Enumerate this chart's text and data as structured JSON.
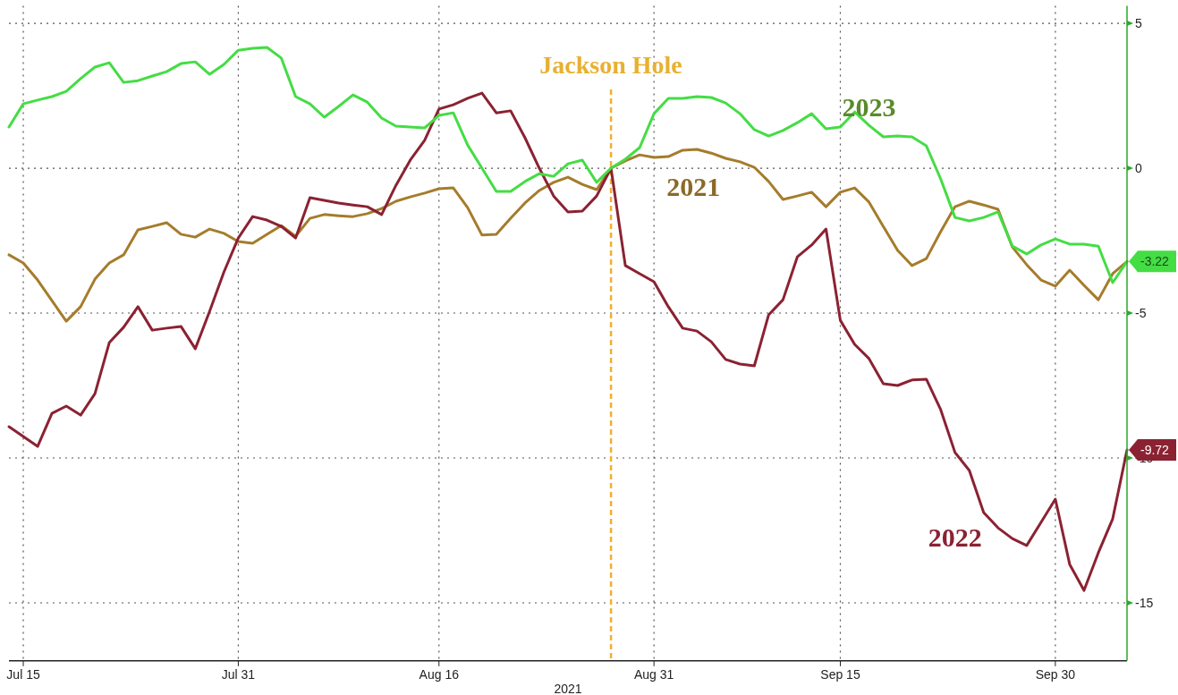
{
  "chart_data": {
    "type": "line",
    "xlabel": "2021",
    "categories": [
      null,
      "Jul 15",
      null,
      null,
      null,
      null,
      null,
      null,
      null,
      null,
      null,
      null,
      null,
      null,
      null,
      null,
      "Jul 31",
      null,
      null,
      null,
      null,
      null,
      null,
      null,
      null,
      null,
      null,
      null,
      null,
      null,
      "Aug 16",
      null,
      null,
      null,
      null,
      null,
      null,
      null,
      null,
      null,
      null,
      null,
      null,
      null,
      null,
      "Aug 31",
      null,
      null,
      null,
      null,
      null,
      null,
      null,
      null,
      null,
      null,
      null,
      null,
      "Sep 15",
      null,
      null,
      null,
      null,
      null,
      null,
      null,
      null,
      null,
      null,
      null,
      null,
      null,
      null,
      "Sep 30",
      null,
      null,
      null,
      null,
      null
    ],
    "ylim": [
      -17,
      5.6
    ],
    "yticks": [
      5,
      0,
      -5,
      -10,
      -15
    ],
    "grid": true,
    "legend": false,
    "annotations": [
      "Jackson Hole"
    ],
    "series": [
      {
        "name": "2021",
        "color": "#a57c2c",
        "values": [
          -2.99,
          -3.27,
          -3.86,
          -4.57,
          -5.28,
          -4.78,
          -3.83,
          -3.27,
          -2.99,
          -2.13,
          -2.01,
          -1.88,
          -2.28,
          -2.38,
          -2.1,
          -2.25,
          -2.53,
          -2.59,
          -2.28,
          -1.98,
          -2.35,
          -1.73,
          -1.6,
          -1.64,
          -1.67,
          -1.57,
          -1.39,
          -1.14,
          -0.99,
          -0.86,
          -0.71,
          -0.68,
          -1.36,
          -2.31,
          -2.28,
          -1.73,
          -1.2,
          -0.77,
          -0.49,
          -0.31,
          -0.56,
          -0.74,
          0,
          0.25,
          0.46,
          0.37,
          0.4,
          0.62,
          0.65,
          0.52,
          0.34,
          0.22,
          0.03,
          -0.46,
          -1.08,
          -0.96,
          -0.83,
          -1.33,
          -0.83,
          -0.68,
          -1.17,
          -2.01,
          -2.84,
          -3.36,
          -3.12,
          -2.19,
          -1.33,
          -1.14,
          -1.27,
          -1.42,
          -2.72,
          -3.33,
          -3.86,
          -4.07,
          -3.52,
          -4.04,
          -4.54,
          -3.64,
          -3.22
        ]
      },
      {
        "name": "2022",
        "color": "#8b2232",
        "values": [
          -8.92,
          -9.26,
          -9.6,
          -8.46,
          -8.21,
          -8.52,
          -7.78,
          -6.02,
          -5.49,
          -4.78,
          -5.59,
          -5.52,
          -5.46,
          -6.23,
          -4.94,
          -3.58,
          -2.41,
          -1.67,
          -1.79,
          -2.01,
          -2.41,
          -1.02,
          -1.11,
          -1.2,
          -1.27,
          -1.33,
          -1.6,
          -0.59,
          0.28,
          0.96,
          2.04,
          2.19,
          2.41,
          2.59,
          1.91,
          1.98,
          1.05,
          0,
          -0.96,
          -1.51,
          -1.48,
          -0.96,
          0,
          -3.36,
          -3.64,
          -3.92,
          -4.78,
          -5.52,
          -5.62,
          -5.99,
          -6.6,
          -6.76,
          -6.82,
          -5.06,
          -4.54,
          -3.06,
          -2.65,
          -2.1,
          -5.25,
          -6.08,
          -6.57,
          -7.44,
          -7.5,
          -7.31,
          -7.28,
          -8.33,
          -9.81,
          -10.43,
          -11.88,
          -12.41,
          -12.78,
          -13.02,
          -12.22,
          -11.42,
          -13.67,
          -14.57,
          -13.27,
          -12.1,
          -9.72
        ],
        "value_labels": [
          null,
          null,
          null,
          null,
          null,
          null,
          null,
          null,
          null,
          null,
          null,
          null,
          null,
          null,
          null,
          null,
          null,
          null,
          null,
          null,
          null,
          null,
          null,
          null,
          null,
          null,
          null,
          null,
          null,
          null,
          null,
          null,
          null,
          null,
          null,
          null,
          null,
          null,
          null,
          null,
          null,
          null,
          null,
          null,
          null,
          null,
          null,
          null,
          null,
          null,
          null,
          null,
          null,
          null,
          null,
          null,
          null,
          null,
          null,
          null,
          null,
          null,
          null,
          null,
          null,
          null,
          null,
          null,
          null,
          null,
          null,
          null,
          null,
          null,
          null,
          null,
          null,
          null,
          "-9.72"
        ]
      },
      {
        "name": "2023",
        "color": "#44dd44",
        "values": [
          1.42,
          2.22,
          2.35,
          2.47,
          2.65,
          3.09,
          3.49,
          3.64,
          2.96,
          3.02,
          3.18,
          3.33,
          3.61,
          3.67,
          3.24,
          3.58,
          4.07,
          4.14,
          4.17,
          3.8,
          2.47,
          2.22,
          1.76,
          2.13,
          2.53,
          2.28,
          1.73,
          1.45,
          1.42,
          1.39,
          1.82,
          1.91,
          0.8,
          0,
          -0.8,
          -0.8,
          -0.46,
          -0.19,
          -0.28,
          0.15,
          0.28,
          -0.49,
          0,
          0.31,
          0.71,
          1.88,
          2.41,
          2.41,
          2.47,
          2.44,
          2.25,
          1.88,
          1.33,
          1.11,
          1.3,
          1.57,
          1.88,
          1.36,
          1.42,
          1.94,
          1.48,
          1.08,
          1.11,
          1.08,
          0.77,
          -0.37,
          -1.7,
          -1.82,
          -1.7,
          -1.51,
          -2.69,
          -2.96,
          -2.65,
          -2.44,
          -2.62,
          -2.62,
          -2.69,
          -3.95,
          -3.22
        ],
        "value_labels": [
          null,
          null,
          null,
          null,
          null,
          null,
          null,
          null,
          null,
          null,
          null,
          null,
          null,
          null,
          null,
          null,
          null,
          null,
          null,
          null,
          null,
          null,
          null,
          null,
          null,
          null,
          null,
          null,
          null,
          null,
          null,
          null,
          null,
          null,
          null,
          null,
          null,
          null,
          null,
          null,
          null,
          null,
          null,
          null,
          null,
          null,
          null,
          null,
          null,
          null,
          null,
          null,
          null,
          null,
          null,
          null,
          null,
          null,
          null,
          null,
          null,
          null,
          null,
          null,
          null,
          null,
          null,
          null,
          null,
          null,
          null,
          null,
          null,
          null,
          null,
          null,
          null,
          null,
          "-3.22"
        ]
      }
    ]
  }
}
